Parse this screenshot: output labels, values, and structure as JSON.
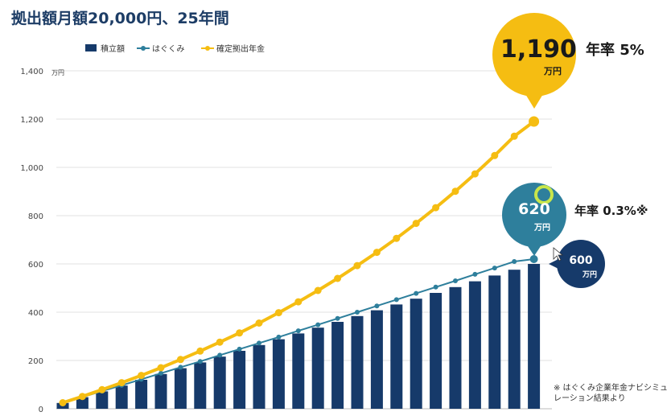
{
  "title": "拠出額月額20,000円、25年間",
  "chart_data": {
    "type": "bar+line",
    "y_unit": "万円",
    "ylim": [
      0,
      1400
    ],
    "y_ticks": [
      "0",
      "200",
      "400",
      "600",
      "800",
      "1,000",
      "1,200",
      "1,400"
    ],
    "y_tick_values": [
      0,
      200,
      400,
      600,
      800,
      1000,
      1200,
      1400
    ],
    "grid": true,
    "legend_position": "top-left",
    "legend": [
      "積立額",
      "はぐくみ",
      "確定拠出年金"
    ],
    "series": [
      {
        "name": "積立額",
        "kind": "bar",
        "values": [
          24,
          48,
          72,
          96,
          120,
          144,
          168,
          192,
          216,
          240,
          264,
          288,
          312,
          336,
          360,
          384,
          408,
          432,
          456,
          480,
          504,
          528,
          552,
          576,
          600
        ]
      },
      {
        "name": "はぐくみ",
        "kind": "line",
        "values": [
          24,
          48,
          73,
          97,
          122,
          147,
          172,
          196,
          222,
          247,
          272,
          297,
          323,
          348,
          374,
          400,
          426,
          452,
          478,
          504,
          530,
          557,
          583,
          610,
          620
        ]
      },
      {
        "name": "確定拠出年金",
        "kind": "line",
        "values": [
          25,
          51,
          79,
          108,
          138,
          170,
          204,
          239,
          276,
          314,
          355,
          398,
          443,
          490,
          540,
          593,
          648,
          706,
          768,
          833,
          901,
          973,
          1049,
          1129,
          1190
        ]
      }
    ],
    "colors": {
      "bar": "#163a6a",
      "hagukumi": "#2e7f9c",
      "dc": "#f5bd12",
      "grid": "#e2e2e2"
    }
  },
  "callouts": {
    "dc": {
      "value": "1,190",
      "unit": "万円",
      "rate_label": "年率 5%"
    },
    "hagukumi": {
      "value": "620",
      "unit": "万円",
      "rate_label": "年率 0.3%※"
    },
    "bar": {
      "value": "600",
      "unit": "万円"
    }
  },
  "footnote": "※ はぐくみ企業年金ナビシミュレーション結果より"
}
